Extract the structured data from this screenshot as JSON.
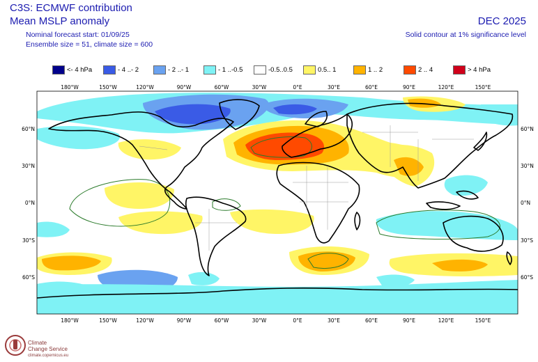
{
  "header": {
    "title": "C3S: ECMWF contribution",
    "subtitle": "Mean MSLP anomaly",
    "forecast_start": "Nominal forecast start: 01/09/25",
    "ensemble": "Ensemble size = 51, climate size = 600",
    "month": "DEC 2025",
    "note": "Solid contour at 1% significance level"
  },
  "legend": [
    {
      "label": "<- 4 hPa",
      "color": "#00008b"
    },
    {
      "label": "- 4 ..- 2",
      "color": "#3a5be6"
    },
    {
      "label": "- 2 ..- 1",
      "color": "#6aa2f0"
    },
    {
      "label": "- 1 ..-0.5",
      "color": "#7ff2f5"
    },
    {
      "label": "-0.5..0.5",
      "color": "#ffffff"
    },
    {
      "label": "0.5.. 1",
      "color": "#fff566"
    },
    {
      "label": "1 .. 2",
      "color": "#ffb300"
    },
    {
      "label": "2 .. 4",
      "color": "#ff4a00"
    },
    {
      "label": "> 4 hPa",
      "color": "#d0001a"
    }
  ],
  "axes": {
    "lon_labels": [
      "180°W",
      "150°W",
      "120°W",
      "90°W",
      "60°W",
      "30°W",
      "0°E",
      "30°E",
      "60°E",
      "90°E",
      "120°E",
      "150°E"
    ],
    "lat_labels": [
      "60°N",
      "30°N",
      "0°N",
      "30°S",
      "60°S"
    ]
  },
  "logo": {
    "name_line1": "Climate",
    "name_line2": "Change Service",
    "url": "climate.copernicus.eu"
  }
}
